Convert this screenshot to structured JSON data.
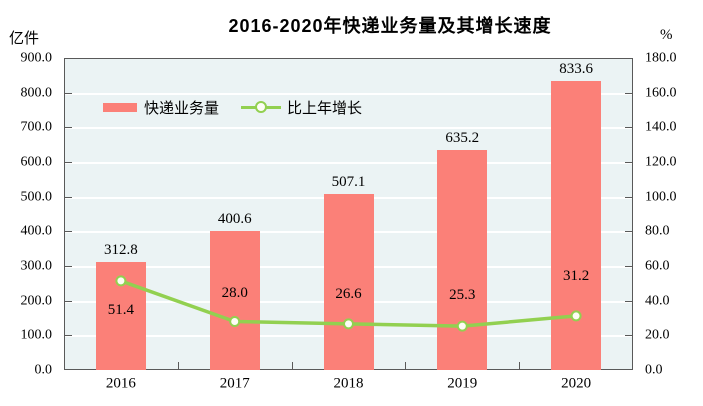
{
  "title": "2016-2020年快递业务量及其增长速度",
  "left_axis_unit": "亿件",
  "right_axis_unit": "%",
  "legend": {
    "bar_label": "快递业务量",
    "line_label": "比上年增长"
  },
  "chart_data": {
    "type": "bar",
    "subtype": "bar+line combo",
    "title": "2016-2020年快递业务量及其增长速度",
    "categories": [
      "2016",
      "2017",
      "2018",
      "2019",
      "2020"
    ],
    "series": [
      {
        "name": "快递业务量",
        "type": "bar",
        "axis": "left",
        "values": [
          312.8,
          400.6,
          507.1,
          635.2,
          833.6
        ],
        "labels": [
          "312.8",
          "400.6",
          "507.1",
          "635.2",
          "833.6"
        ],
        "color": "#fb8078"
      },
      {
        "name": "比上年增长",
        "type": "line",
        "axis": "right",
        "values": [
          51.4,
          28.0,
          26.6,
          25.3,
          31.2
        ],
        "labels": [
          "51.4",
          "28.0",
          "26.6",
          "25.3",
          "31.2"
        ],
        "color": "#92d050",
        "marker": "circle-white-fill"
      }
    ],
    "left_axis": {
      "label": "亿件",
      "min": 0,
      "max": 900,
      "step": 100,
      "tick_labels": [
        "0.0",
        "100.0",
        "200.0",
        "300.0",
        "400.0",
        "500.0",
        "600.0",
        "700.0",
        "800.0",
        "900.0"
      ]
    },
    "right_axis": {
      "label": "%",
      "min": 0,
      "max": 180,
      "step": 20,
      "tick_labels": [
        "0.0",
        "20.0",
        "40.0",
        "60.0",
        "80.0",
        "100.0",
        "120.0",
        "140.0",
        "160.0",
        "180.0"
      ]
    },
    "grid": true,
    "legend_position": "top-left-inside",
    "line_label_offsets": [
      29,
      -28,
      -30,
      -31,
      -40
    ],
    "colors": {
      "bar": "#fb8078",
      "line": "#92d050",
      "marker_fill": "#fdfdf5",
      "plot_background": "#ebf3f4",
      "gridline": "#ffffff",
      "axis_border": "#595959",
      "text": "#000000"
    }
  }
}
